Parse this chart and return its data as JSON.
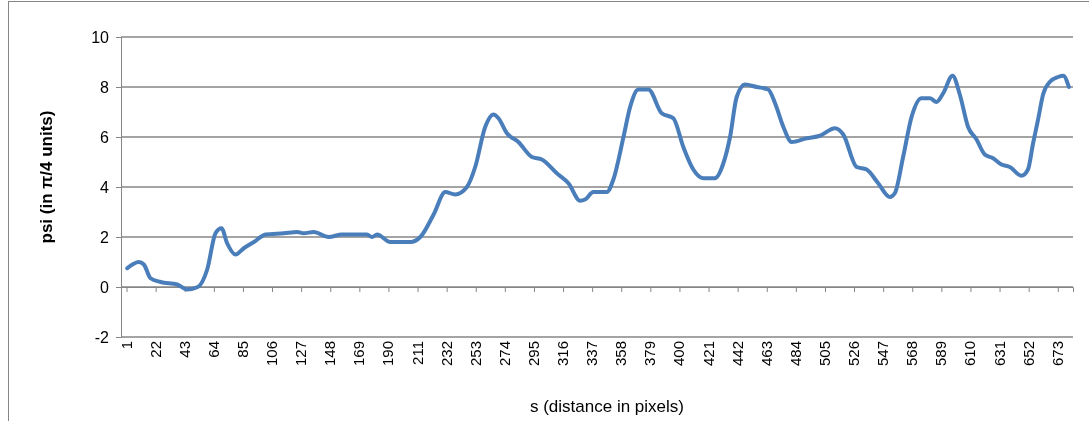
{
  "chart_data": {
    "type": "line",
    "xlabel": "s (distance in pixels)",
    "ylabel": "psi (in π/4 units)",
    "xlim": [
      -3,
      684
    ],
    "xticks": [
      1,
      22,
      43,
      64,
      85,
      106,
      127,
      148,
      169,
      190,
      211,
      232,
      253,
      274,
      295,
      316,
      337,
      358,
      379,
      400,
      421,
      442,
      463,
      484,
      505,
      526,
      547,
      568,
      589,
      610,
      631,
      652,
      673
    ],
    "ylim": [
      -2,
      10
    ],
    "yticks": [
      -2,
      0,
      2,
      4,
      6,
      8,
      10
    ],
    "grid": "y",
    "marker": "none",
    "line_style": "solid",
    "series": [
      {
        "color": "#4a7ebb",
        "x": [
          1.5,
          9.9,
          13.5,
          18.3,
          25.5,
          37.6,
          44.8,
          52.4,
          59.2,
          65.2,
          69.5,
          73.6,
          79.7,
          85.6,
          92.9,
          101.3,
          114.5,
          124.2,
          128.8,
          136,
          146.9,
          156.5,
          174.5,
          178.2,
          181.8,
          191.3,
          205.8,
          213,
          222.6,
          231,
          238.2,
          246.6,
          252.6,
          259.8,
          265.8,
          269.4,
          275.5,
          283.8,
          293.5,
          300.7,
          311.5,
          319.9,
          328.3,
          331.9,
          337.9,
          347.6,
          352.3,
          359.6,
          364.4,
          370.4,
          377.6,
          387.2,
          395.6,
          402.8,
          410,
          417.2,
          425.6,
          431.7,
          436.5,
          441.3,
          447.3,
          455.8,
          464.1,
          469,
          475,
          481,
          491.8,
          501.4,
          512.2,
          518.2,
          527.9,
          535.1,
          543.4,
          551.9,
          555.4,
          561.4,
          567.5,
          574.7,
          580.7,
          585.5,
          590.3,
          597.1,
          602.3,
          608.3,
          614.4,
          620.3,
          626.3,
          632.4,
          638.4,
          646.8,
          651.5,
          655.2,
          658.8,
          662.4,
          667.2,
          673.2,
          677,
          681
        ],
        "values": [
          0.75,
          1.0,
          0.9,
          0.35,
          0.2,
          0.1,
          -0.1,
          0,
          0.7,
          2.15,
          2.35,
          1.75,
          1.3,
          1.55,
          1.8,
          2.1,
          2.15,
          2.2,
          2.15,
          2.2,
          2.0,
          2.1,
          2.1,
          2.0,
          2.1,
          1.8,
          1.8,
          2.0,
          2.9,
          3.8,
          3.7,
          4.0,
          4.8,
          6.4,
          6.9,
          6.75,
          6.15,
          5.8,
          5.2,
          5.1,
          4.55,
          4.15,
          3.45,
          3.5,
          3.8,
          3.8,
          4.3,
          6.0,
          7.2,
          7.9,
          7.9,
          6.95,
          6.75,
          5.6,
          4.7,
          4.35,
          4.35,
          4.95,
          6.0,
          7.6,
          8.1,
          8.0,
          7.9,
          7.35,
          6.4,
          5.8,
          5.95,
          6.05,
          6.35,
          6.1,
          4.8,
          4.7,
          4.15,
          3.6,
          3.75,
          5.2,
          6.8,
          7.55,
          7.55,
          7.4,
          7.75,
          8.45,
          7.7,
          6.4,
          5.9,
          5.3,
          5.15,
          4.9,
          4.8,
          4.45,
          4.7,
          5.75,
          6.7,
          7.7,
          8.2,
          8.4,
          8.45,
          8.0
        ]
      }
    ]
  }
}
